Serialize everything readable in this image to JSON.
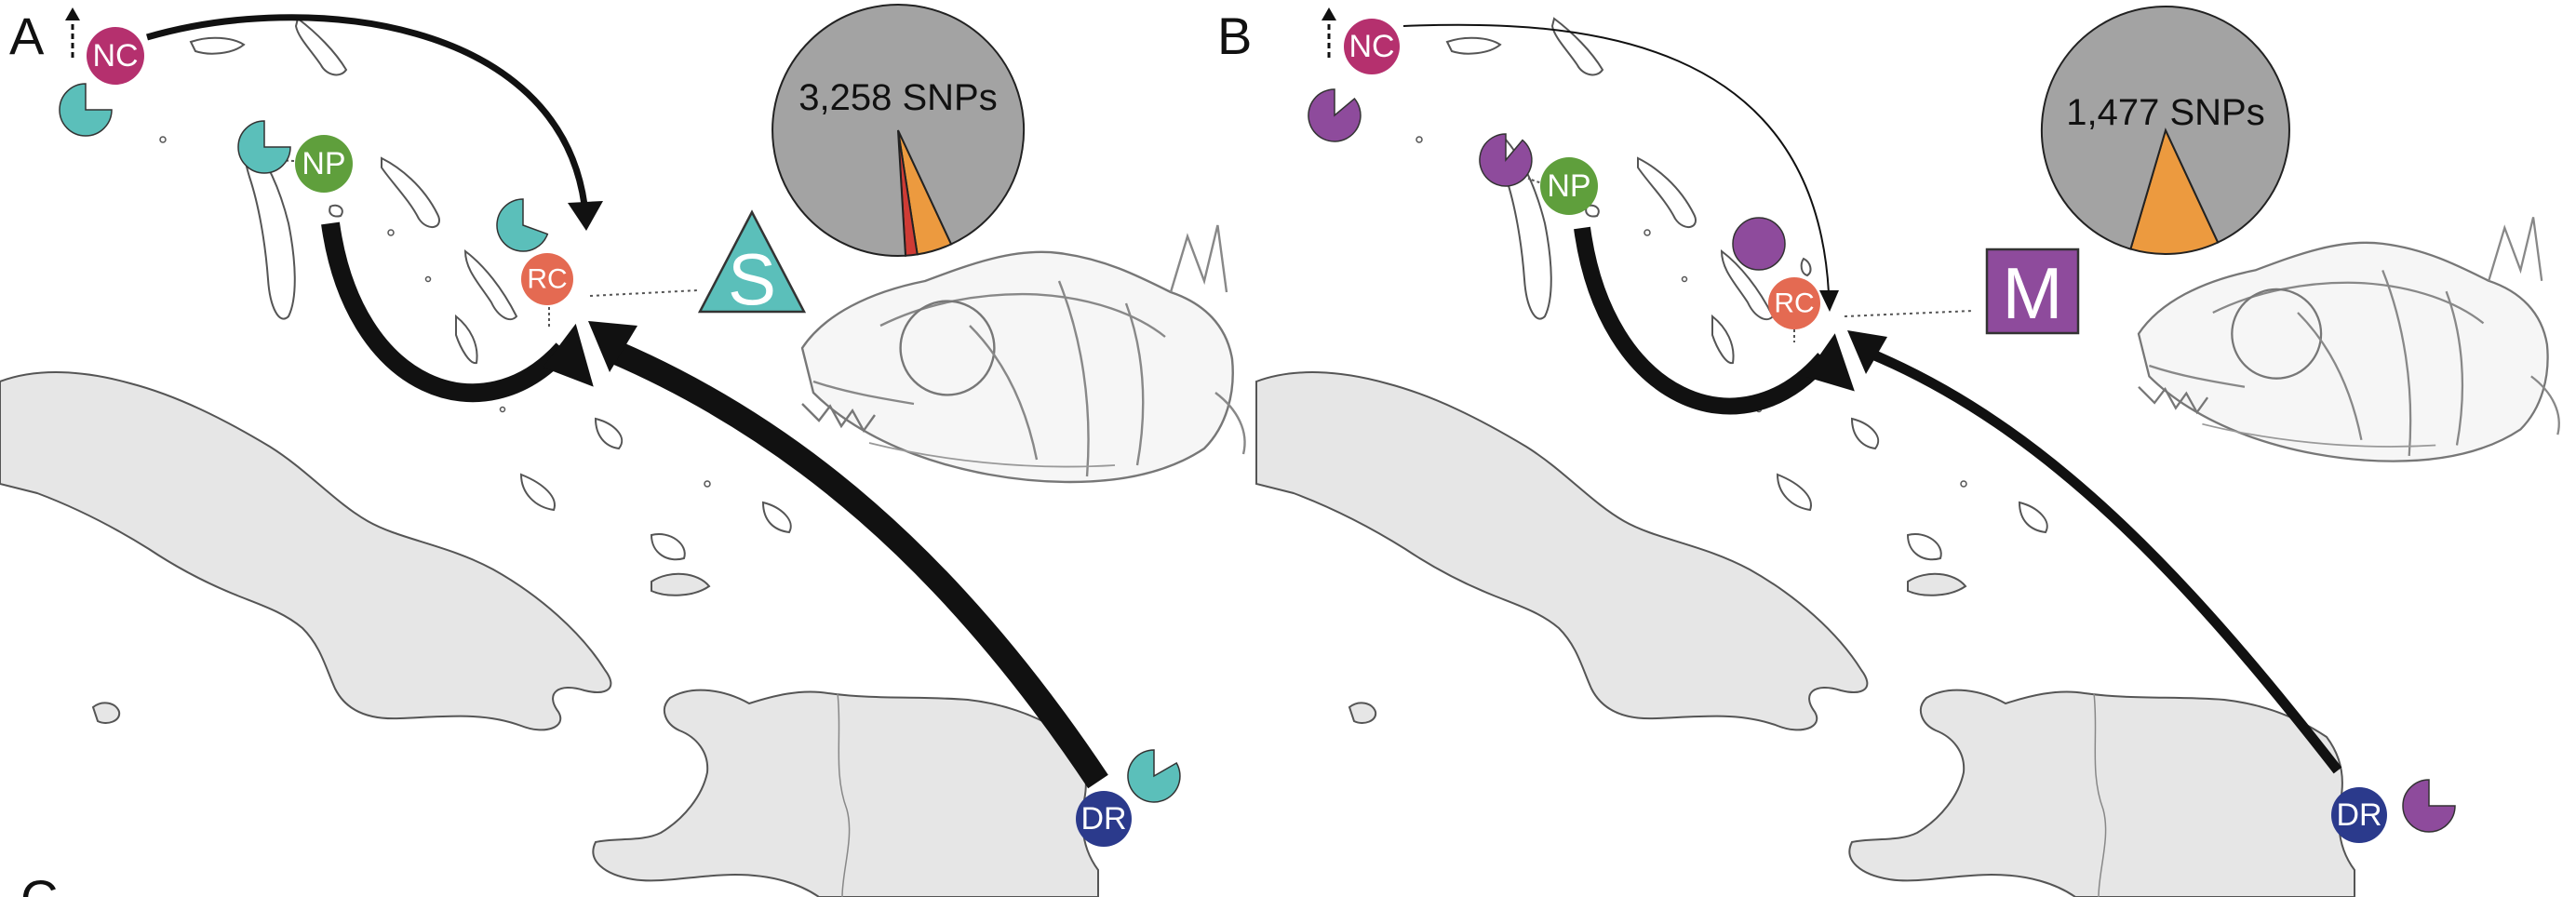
{
  "panels": [
    {
      "letter": "A",
      "sites": {
        "NC": "NC",
        "NP": "NP",
        "RC": "RC",
        "DR": "DR"
      },
      "snp_label": "3,258 SNPs",
      "badge": {
        "label": "S",
        "shape": "triangle",
        "color": "#5bbfba"
      },
      "glyph_color": "#5bbfba",
      "pie_slices": [
        {
          "category": "gray",
          "fraction": 0.94,
          "color": "#a3a3a3"
        },
        {
          "category": "red",
          "fraction": 0.015,
          "color": "#cf3b35"
        },
        {
          "category": "orange",
          "fraction": 0.045,
          "color": "#ec9a3f"
        }
      ]
    },
    {
      "letter": "B",
      "sites": {
        "NC": "NC",
        "NP": "NP",
        "RC": "RC",
        "DR": "DR"
      },
      "snp_label": "1,477 SNPs",
      "badge": {
        "label": "M",
        "shape": "square",
        "color": "#8e4b9c"
      },
      "glyph_color": "#8e4b9c",
      "pie_slices": [
        {
          "category": "gray",
          "fraction": 0.885,
          "color": "#a3a3a3"
        },
        {
          "category": "orange",
          "fraction": 0.115,
          "color": "#ec9a3f"
        }
      ]
    }
  ],
  "colors": {
    "nc": "#b5306e",
    "np": "#5f9f3c",
    "rc": "#e46a52",
    "dr": "#2b3a8c",
    "land": "#e6e6e6",
    "coast": "#555555"
  },
  "bottom_letter": "C"
}
